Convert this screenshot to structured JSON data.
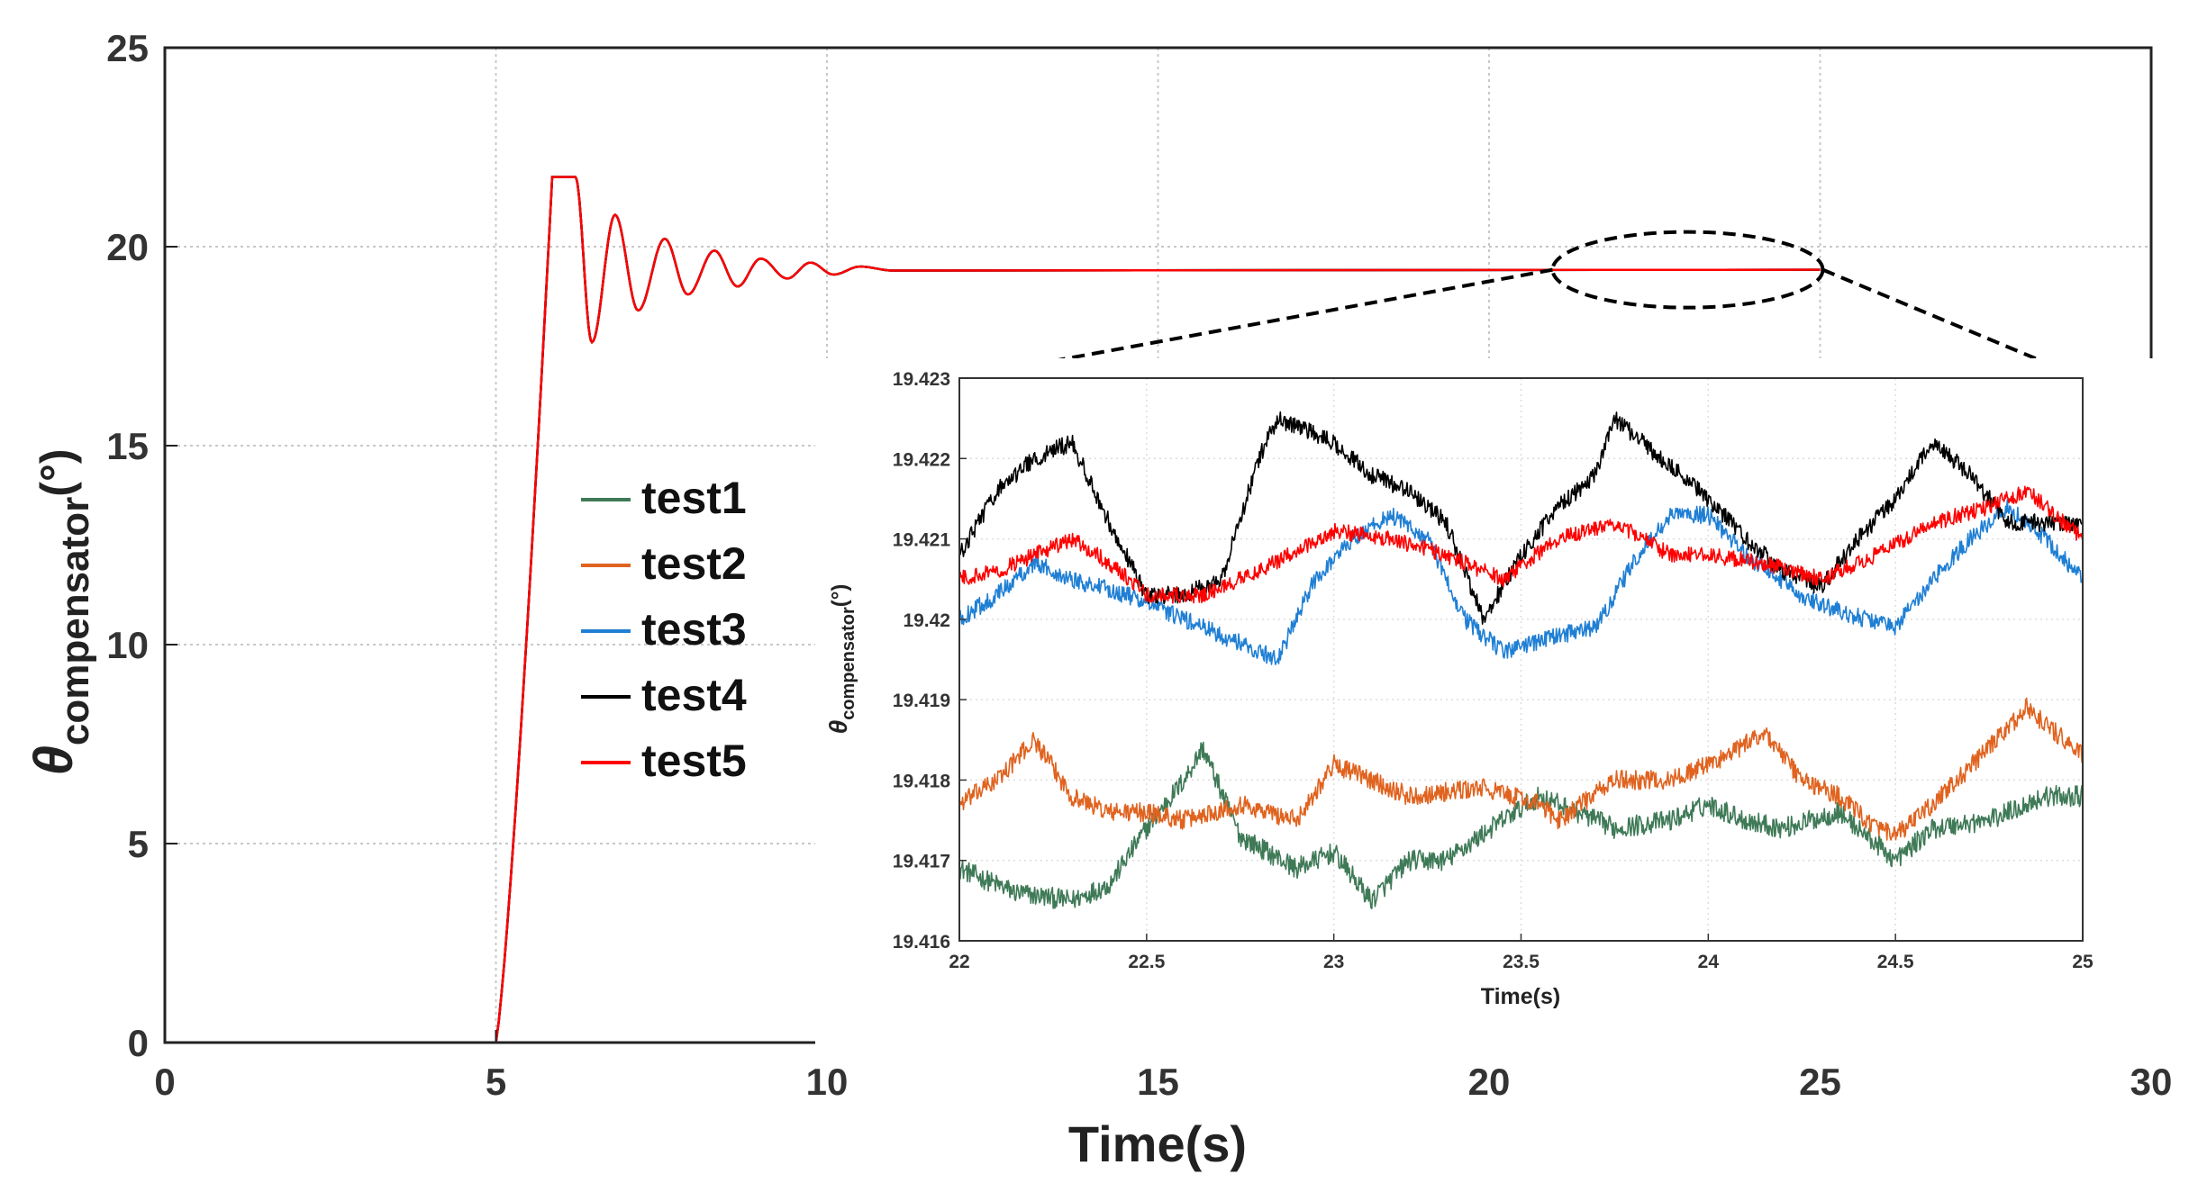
{
  "chart_data": {
    "type": "line",
    "main": {
      "xlabel": "Time(s)",
      "ylabel_symbol": "θ",
      "ylabel_subscript": "compensator",
      "ylabel_unit": "(°)",
      "xlim": [
        0,
        30
      ],
      "ylim": [
        0,
        25
      ],
      "xticks": [
        "0",
        "5",
        "10",
        "15",
        "20",
        "25",
        "30"
      ],
      "yticks": [
        "0",
        "5",
        "10",
        "15",
        "20",
        "25"
      ],
      "grid": true,
      "legend_position": "center-left",
      "series": [
        {
          "name": "test1",
          "color": "#3f7a57"
        },
        {
          "name": "test2",
          "color": "#e0631f"
        },
        {
          "name": "test3",
          "color": "#1f7fd4"
        },
        {
          "name": "test4",
          "color": "#000000"
        },
        {
          "name": "test5",
          "color": "#ff0000"
        }
      ],
      "response": {
        "start_time": 5.0,
        "saturation_value": 21.75,
        "saturation_start": 5.85,
        "saturation_end": 6.2,
        "steady_state": 19.42,
        "oscillation_peaks": [
          [
            6.45,
            17.6
          ],
          [
            6.8,
            20.8
          ],
          [
            7.15,
            18.4
          ],
          [
            7.55,
            20.2
          ],
          [
            7.9,
            18.8
          ],
          [
            8.3,
            19.9
          ],
          [
            8.65,
            19.0
          ],
          [
            9.0,
            19.7
          ],
          [
            9.4,
            19.2
          ],
          [
            9.75,
            19.6
          ],
          [
            10.1,
            19.3
          ],
          [
            10.5,
            19.5
          ],
          [
            11.0,
            19.4
          ]
        ]
      },
      "zoom_ellipse": {
        "x_center": 23.0,
        "y_center": 19.42
      }
    },
    "inset": {
      "xlabel": "Time(s)",
      "ylabel_symbol": "θ",
      "ylabel_subscript": "compensator",
      "ylabel_unit": "(°)",
      "xlim": [
        22,
        25
      ],
      "ylim": [
        19.416,
        19.423
      ],
      "xticks": [
        "22",
        "22.5",
        "23",
        "23.5",
        "24",
        "24.5",
        "25"
      ],
      "yticks": [
        "19.416",
        "19.417",
        "19.418",
        "19.419",
        "19.42",
        "19.421",
        "19.422",
        "19.423"
      ],
      "series": [
        {
          "name": "test1",
          "color": "#3f7a57",
          "noise": 0.00013,
          "points": [
            [
              22.0,
              19.4169
            ],
            [
              22.15,
              19.4166
            ],
            [
              22.3,
              19.4165
            ],
            [
              22.4,
              19.4167
            ],
            [
              22.5,
              19.4174
            ],
            [
              22.6,
              19.418
            ],
            [
              22.65,
              19.4184
            ],
            [
              22.75,
              19.4173
            ],
            [
              22.9,
              19.4169
            ],
            [
              23.0,
              19.4171
            ],
            [
              23.1,
              19.4165
            ],
            [
              23.2,
              19.417
            ],
            [
              23.3,
              19.417
            ],
            [
              23.45,
              19.4175
            ],
            [
              23.55,
              19.4178
            ],
            [
              23.65,
              19.4176
            ],
            [
              23.75,
              19.4174
            ],
            [
              23.9,
              19.4175
            ],
            [
              24.0,
              19.4177
            ],
            [
              24.1,
              19.4175
            ],
            [
              24.2,
              19.4174
            ],
            [
              24.35,
              19.4176
            ],
            [
              24.45,
              19.4172
            ],
            [
              24.5,
              19.417
            ],
            [
              24.6,
              19.4174
            ],
            [
              24.75,
              19.4175
            ],
            [
              24.9,
              19.4178
            ],
            [
              25.0,
              19.4178
            ]
          ]
        },
        {
          "name": "test2",
          "color": "#e0631f",
          "noise": 0.00012,
          "points": [
            [
              22.0,
              19.4177
            ],
            [
              22.1,
              19.418
            ],
            [
              22.2,
              19.4185
            ],
            [
              22.3,
              19.4178
            ],
            [
              22.4,
              19.4176
            ],
            [
              22.5,
              19.4176
            ],
            [
              22.6,
              19.4175
            ],
            [
              22.75,
              19.4177
            ],
            [
              22.9,
              19.4175
            ],
            [
              23.0,
              19.4182
            ],
            [
              23.2,
              19.4178
            ],
            [
              23.4,
              19.4179
            ],
            [
              23.55,
              19.4177
            ],
            [
              23.6,
              19.4175
            ],
            [
              23.75,
              19.418
            ],
            [
              23.9,
              19.418
            ],
            [
              24.05,
              19.4183
            ],
            [
              24.15,
              19.4186
            ],
            [
              24.25,
              19.418
            ],
            [
              24.35,
              19.4178
            ],
            [
              24.45,
              19.4174
            ],
            [
              24.5,
              19.4173
            ],
            [
              24.6,
              19.4177
            ],
            [
              24.75,
              19.4184
            ],
            [
              24.85,
              19.4189
            ],
            [
              24.95,
              19.4185
            ],
            [
              25.0,
              19.4183
            ]
          ]
        },
        {
          "name": "test3",
          "color": "#1f7fd4",
          "noise": 0.00011,
          "points": [
            [
              22.0,
              19.42
            ],
            [
              22.1,
              19.4203
            ],
            [
              22.2,
              19.4207
            ],
            [
              22.3,
              19.4205
            ],
            [
              22.45,
              19.4203
            ],
            [
              22.6,
              19.42
            ],
            [
              22.7,
              19.4198
            ],
            [
              22.85,
              19.4195
            ],
            [
              22.95,
              19.4205
            ],
            [
              23.05,
              19.421
            ],
            [
              23.15,
              19.4213
            ],
            [
              23.25,
              19.421
            ],
            [
              23.35,
              19.42
            ],
            [
              23.45,
              19.4196
            ],
            [
              23.6,
              19.4198
            ],
            [
              23.7,
              19.4199
            ],
            [
              23.8,
              19.4207
            ],
            [
              23.9,
              19.4213
            ],
            [
              24.0,
              19.4213
            ],
            [
              24.1,
              19.4208
            ],
            [
              24.25,
              19.4203
            ],
            [
              24.35,
              19.4201
            ],
            [
              24.5,
              19.4199
            ],
            [
              24.6,
              19.4205
            ],
            [
              24.7,
              19.421
            ],
            [
              24.8,
              19.4214
            ],
            [
              24.9,
              19.421
            ],
            [
              25.0,
              19.4205
            ]
          ]
        },
        {
          "name": "test4",
          "color": "#000000",
          "noise": 0.00011,
          "points": [
            [
              22.0,
              19.4208
            ],
            [
              22.1,
              19.4216
            ],
            [
              22.2,
              19.422
            ],
            [
              22.3,
              19.4222
            ],
            [
              22.4,
              19.4212
            ],
            [
              22.5,
              19.4203
            ],
            [
              22.6,
              19.4203
            ],
            [
              22.7,
              19.4205
            ],
            [
              22.8,
              19.422
            ],
            [
              22.85,
              19.4225
            ],
            [
              23.0,
              19.4222
            ],
            [
              23.1,
              19.4218
            ],
            [
              23.2,
              19.4216
            ],
            [
              23.3,
              19.4212
            ],
            [
              23.4,
              19.42
            ],
            [
              23.5,
              19.4208
            ],
            [
              23.6,
              19.4214
            ],
            [
              23.7,
              19.4218
            ],
            [
              23.75,
              19.4225
            ],
            [
              23.85,
              19.4221
            ],
            [
              24.0,
              19.4215
            ],
            [
              24.1,
              19.421
            ],
            [
              24.2,
              19.4206
            ],
            [
              24.3,
              19.4204
            ],
            [
              24.4,
              19.421
            ],
            [
              24.5,
              19.4215
            ],
            [
              24.6,
              19.4222
            ],
            [
              24.7,
              19.4218
            ],
            [
              24.8,
              19.4212
            ],
            [
              24.9,
              19.4212
            ],
            [
              25.0,
              19.4212
            ]
          ]
        },
        {
          "name": "test5",
          "color": "#ff0000",
          "noise": 0.0001,
          "points": [
            [
              22.0,
              19.4205
            ],
            [
              22.1,
              19.4206
            ],
            [
              22.2,
              19.4208
            ],
            [
              22.3,
              19.421
            ],
            [
              22.4,
              19.4207
            ],
            [
              22.5,
              19.4203
            ],
            [
              22.65,
              19.4203
            ],
            [
              22.8,
              19.4206
            ],
            [
              23.0,
              19.4211
            ],
            [
              23.15,
              19.421
            ],
            [
              23.3,
              19.4208
            ],
            [
              23.45,
              19.4205
            ],
            [
              23.6,
              19.421
            ],
            [
              23.75,
              19.4212
            ],
            [
              23.9,
              19.4208
            ],
            [
              24.0,
              19.4208
            ],
            [
              24.15,
              19.4207
            ],
            [
              24.3,
              19.4205
            ],
            [
              24.45,
              19.4208
            ],
            [
              24.6,
              19.4212
            ],
            [
              24.75,
              19.4214
            ],
            [
              24.85,
              19.4216
            ],
            [
              24.95,
              19.4212
            ],
            [
              25.0,
              19.421
            ]
          ]
        }
      ]
    }
  }
}
